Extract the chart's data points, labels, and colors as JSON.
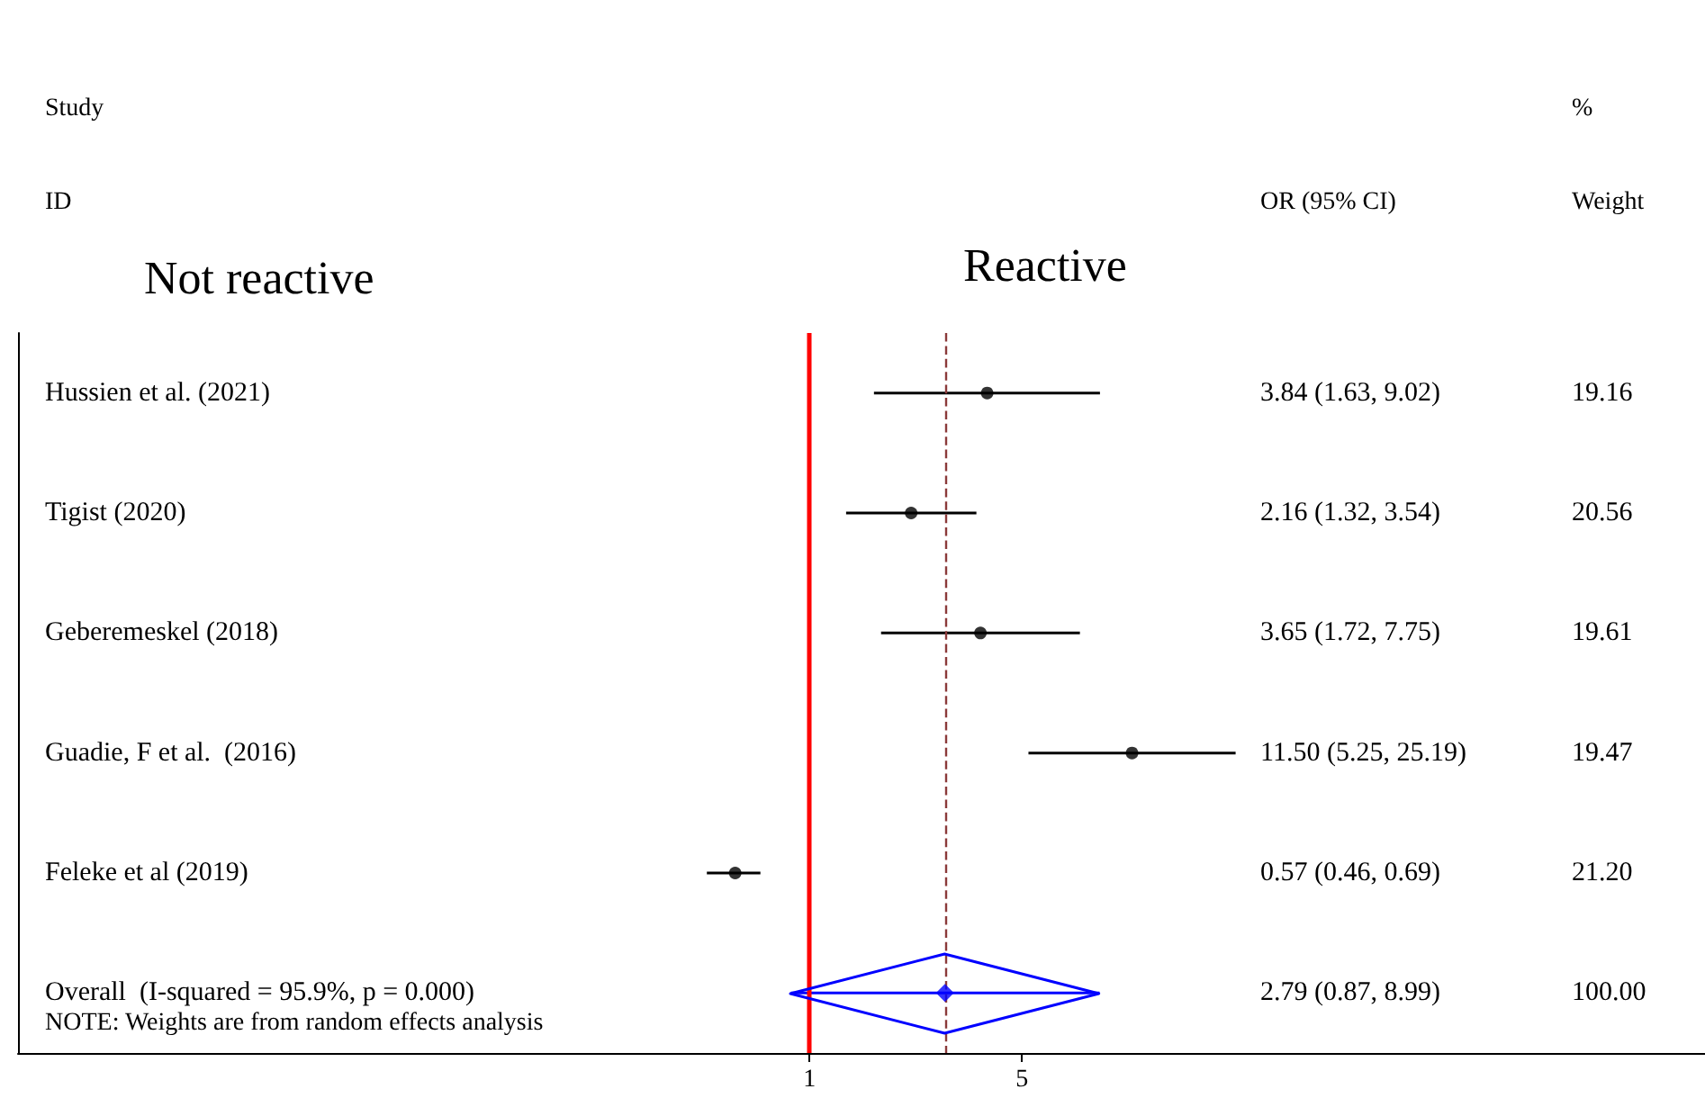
{
  "chart_data": {
    "type": "scatter",
    "orientation": "horizontal",
    "log": "x",
    "categories": [
      "Hussien et al. (2021)",
      "Tigist (2020)",
      "Geberemeskel (2018)",
      "Guadie, F et al.  (2016)",
      "Feleke et al (2019)",
      "Overall  (I-squared = 95.9%, p = 0.000)"
    ],
    "series": [
      {
        "color": "#000000",
        "marker": "circle",
        "values": [
          3.84,
          2.16,
          3.65,
          11.5,
          0.57,
          null
        ],
        "errors": [
          [
            1.63,
            9.02
          ],
          [
            1.32,
            3.54
          ],
          [
            1.72,
            7.75
          ],
          [
            5.25,
            25.19
          ],
          [
            0.46,
            0.69
          ],
          null
        ]
      },
      {
        "color": "#0000ff",
        "marker": "diamond",
        "values": [
          null,
          null,
          null,
          null,
          null,
          2.79
        ],
        "errors": [
          null,
          null,
          null,
          null,
          null,
          [
            0.87,
            8.99
          ]
        ]
      }
    ],
    "xlim": [
      0.0025,
      880
    ],
    "xticks": [
      1,
      5
    ],
    "grid": false,
    "ref_lines": [
      {
        "axis": "x",
        "value": 1,
        "color": "#ff0000",
        "line_style": "solid"
      },
      {
        "axis": "x",
        "value": 2.79,
        "color": "#8b3a3a",
        "line_style": "dashed"
      }
    ],
    "annotations": [
      "Study",
      "ID",
      "%",
      "Weight",
      "OR (95% CI)",
      "Not reactive",
      "Reactive",
      "NOTE: Weights are from random effects analysis",
      "3.84 (1.63, 9.02)",
      "2.16 (1.32, 3.54)",
      "3.65 (1.72, 7.75)",
      "11.50 (5.25, 25.19)",
      "0.57 (0.46, 0.69)",
      "2.79 (0.87, 8.99)",
      "19.16",
      "20.56",
      "19.61",
      "19.47",
      "21.20",
      "100.00"
    ]
  }
}
